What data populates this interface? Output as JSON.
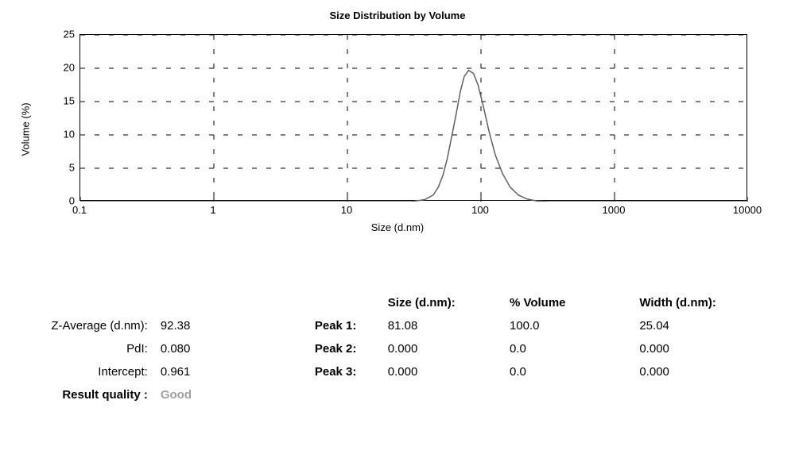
{
  "chart": {
    "title": "Size Distribution by Volume",
    "type": "line",
    "xlabel": "Size (d.nm)",
    "ylabel": "Volume (%)",
    "xscale": "log",
    "xlim_log10": [
      -1,
      4
    ],
    "ylim": [
      0,
      25
    ],
    "ytick_step": 5,
    "yticks": [
      0,
      5,
      10,
      15,
      20,
      25
    ],
    "xticks": [
      0.1,
      1,
      10,
      100,
      1000,
      10000
    ],
    "xtick_labels": [
      "0.1",
      "1",
      "10",
      "100",
      "1000",
      "10000"
    ],
    "line_color": "#606060",
    "line_width": 1.5,
    "grid_color": "#000000",
    "grid_dash": "6 12",
    "background_color": "#ffffff",
    "series": {
      "x": [
        0.1,
        30,
        38,
        44,
        48,
        52,
        56,
        60,
        65,
        70,
        75,
        81,
        88,
        95,
        105,
        115,
        128,
        145,
        165,
        190,
        220,
        260,
        320,
        10000
      ],
      "y": [
        0,
        0,
        0.3,
        1.0,
        2.2,
        4.0,
        6.5,
        9.5,
        13.0,
        16.5,
        18.8,
        19.7,
        19.2,
        17.5,
        14.0,
        10.5,
        7.0,
        4.2,
        2.2,
        1.0,
        0.4,
        0.1,
        0,
        0
      ]
    }
  },
  "results": {
    "headers": {
      "size": "Size (d.nm):",
      "volume": "% Volume",
      "width": "Width (d.nm):"
    },
    "left": {
      "z_average_label": "Z-Average (d.nm):",
      "z_average_value": "92.38",
      "pdi_label": "PdI:",
      "pdi_value": "0.080",
      "intercept_label": "Intercept:",
      "intercept_value": "0.961",
      "quality_label": "Result quality :",
      "quality_value": "Good"
    },
    "peaks": [
      {
        "label": "Peak 1:",
        "size": "81.08",
        "volume": "100.0",
        "width": "25.04"
      },
      {
        "label": "Peak 2:",
        "size": "0.000",
        "volume": "0.0",
        "width": "0.000"
      },
      {
        "label": "Peak 3:",
        "size": "0.000",
        "volume": "0.0",
        "width": "0.000"
      }
    ]
  }
}
